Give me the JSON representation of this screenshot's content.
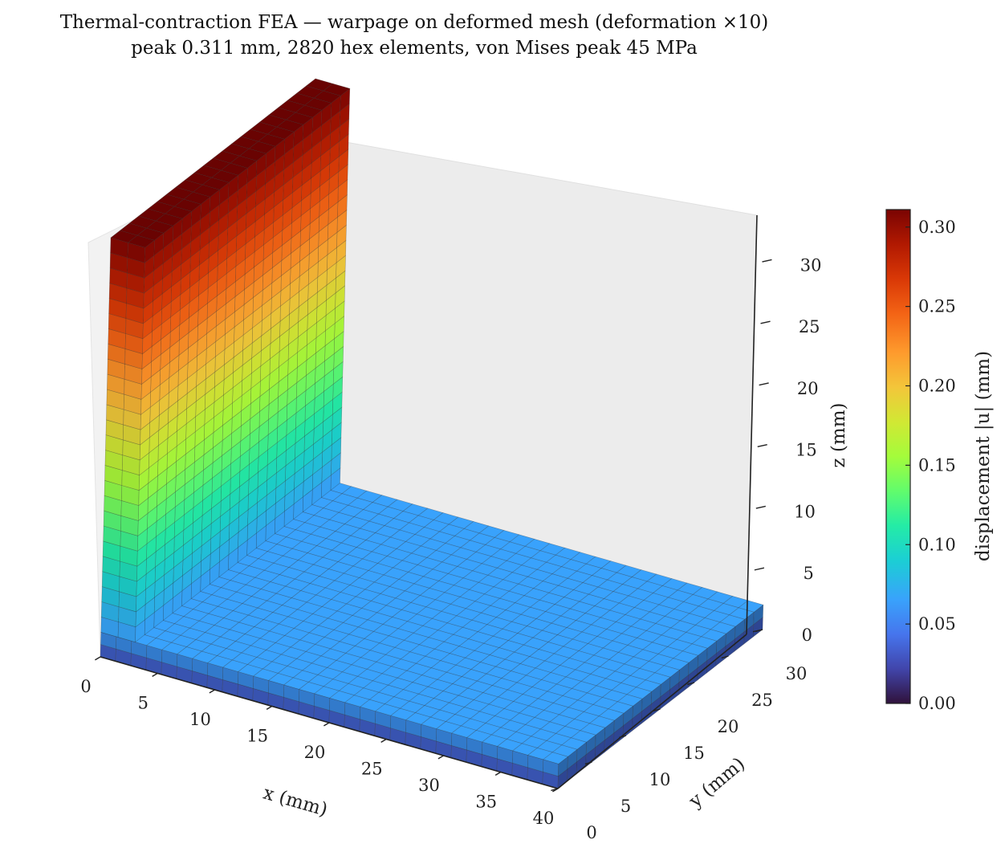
{
  "chart_data": {
    "type": "surface3d",
    "title": "Thermal-contraction FEA — warpage on deformed mesh (deformation ×10)",
    "subtitle": "peak 0.311 mm, 2820 hex elements, von Mises peak 45 MPa",
    "xlabel": "x (mm)",
    "ylabel": "y (mm)",
    "zlabel": "z (mm)",
    "x_ticks": [
      "0",
      "5",
      "10",
      "15",
      "20",
      "25",
      "30",
      "35",
      "40"
    ],
    "y_ticks": [
      "0",
      "5",
      "10",
      "15",
      "20",
      "25",
      "30"
    ],
    "z_ticks": [
      "0",
      "5",
      "10",
      "15",
      "20",
      "25",
      "30"
    ],
    "xlim": [
      0,
      40
    ],
    "ylim": [
      0,
      30
    ],
    "zlim": [
      0,
      34
    ],
    "colorbar": {
      "label": "displacement |u| (mm)",
      "ticks": [
        "0.00",
        "0.05",
        "0.10",
        "0.15",
        "0.20",
        "0.25",
        "0.30"
      ],
      "range": [
        0,
        0.311
      ],
      "colormap": "turbo"
    },
    "geometry": {
      "base_plate": {
        "x": [
          0,
          40
        ],
        "y": [
          0,
          30
        ],
        "z": [
          0,
          2
        ]
      },
      "wall": {
        "x": [
          0,
          3
        ],
        "y": [
          0,
          30
        ],
        "z": [
          2,
          34
        ]
      }
    },
    "displacement_profile": {
      "base_range_mm": [
        0.02,
        0.07
      ],
      "wall_top_mm": 0.311
    },
    "peak_displacement_mm": 0.311,
    "element_count": 2820,
    "von_mises_peak_MPa": 45,
    "deformation_scale": 10
  }
}
